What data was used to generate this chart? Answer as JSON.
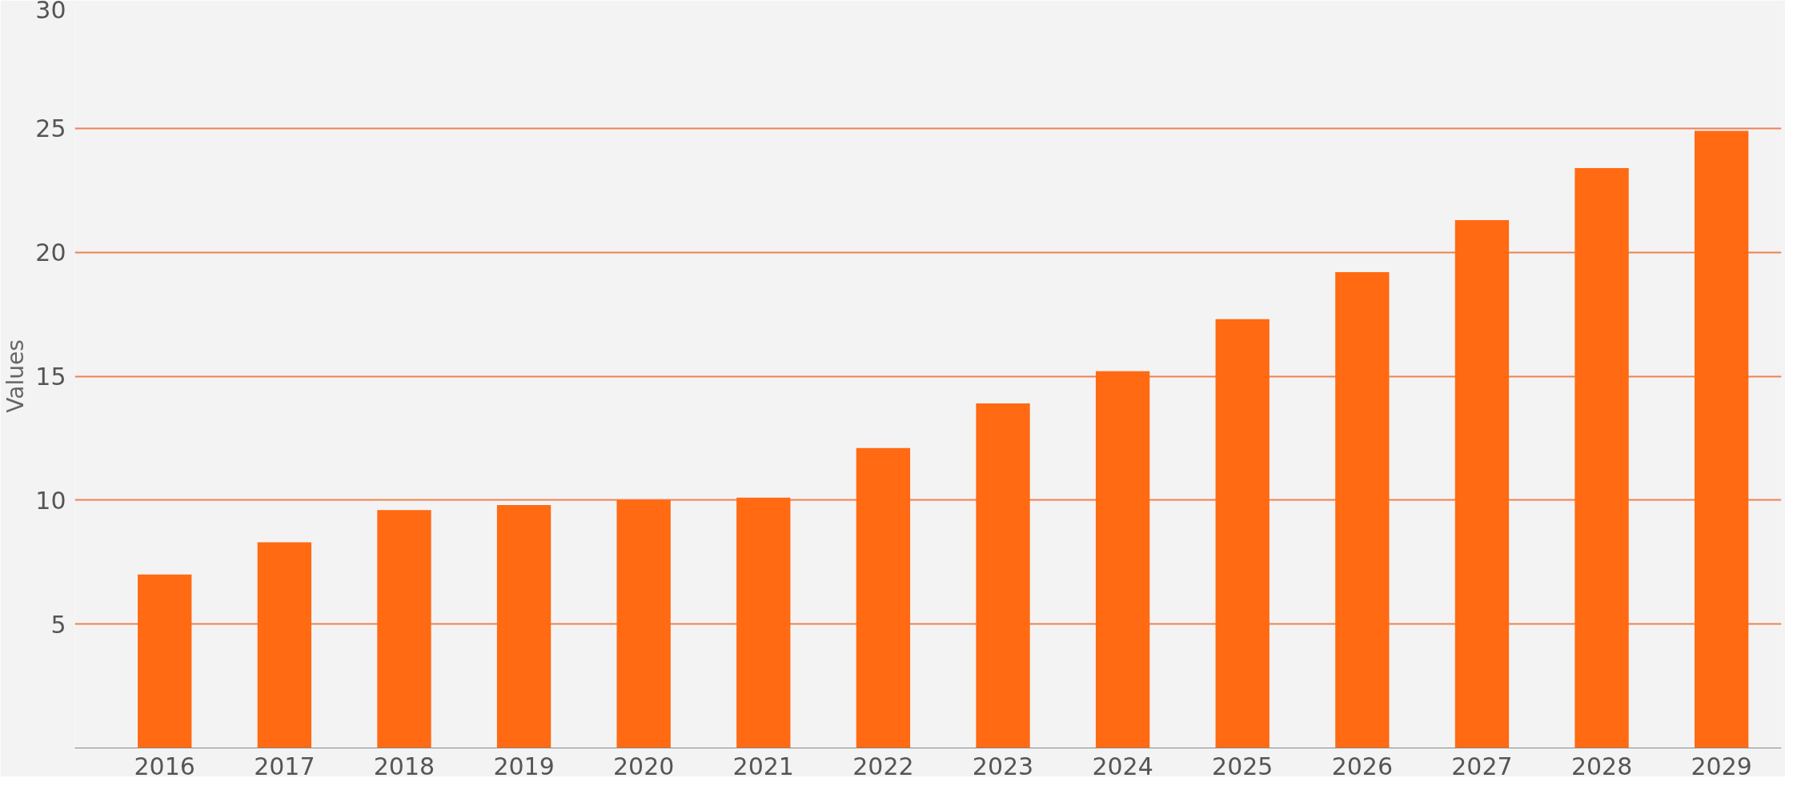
{
  "chart_data": {
    "type": "bar",
    "ylabel": "Values",
    "categories": [
      "2016",
      "2017",
      "2018",
      "2019",
      "2020",
      "2021",
      "2022",
      "2023",
      "2024",
      "2025",
      "2026",
      "2027",
      "2028",
      "2029"
    ],
    "values": [
      7.0,
      8.3,
      9.6,
      9.8,
      10.0,
      10.1,
      12.1,
      13.9,
      15.2,
      17.3,
      19.2,
      21.3,
      23.4,
      24.9
    ],
    "color": "#ff6a13",
    "ylim": [
      0,
      30
    ],
    "yticks": [
      5,
      10,
      15,
      20,
      25,
      30
    ],
    "grid": "y"
  }
}
